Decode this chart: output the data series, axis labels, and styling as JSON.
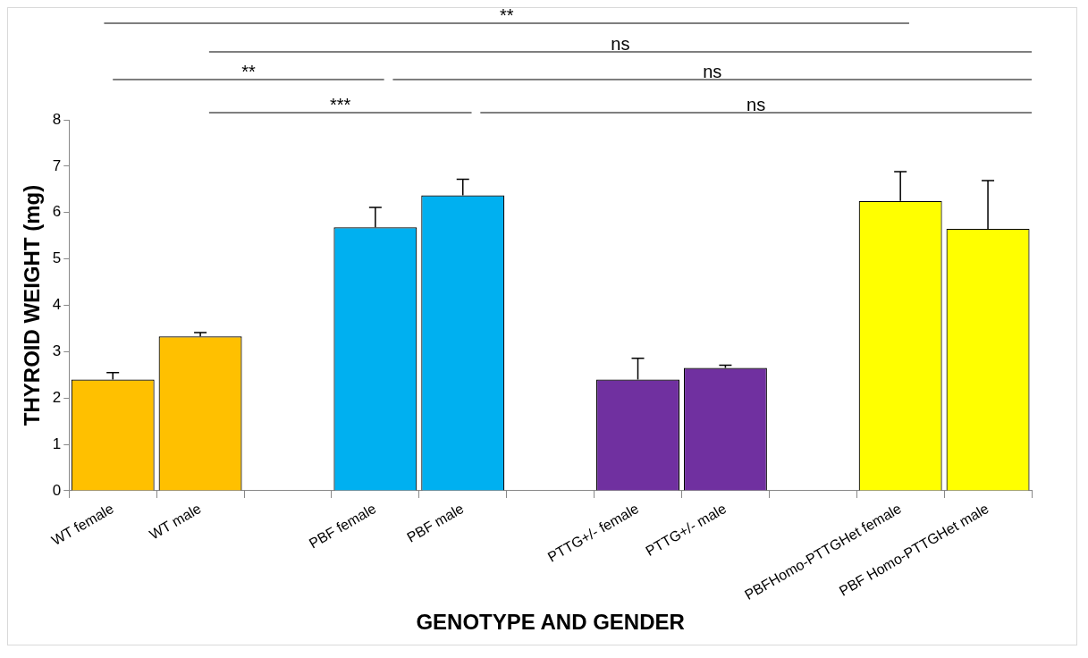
{
  "chart_data": {
    "type": "bar",
    "xlabel": "GENOTYPE AND GENDER",
    "ylabel": "THYROID WEIGHT (mg)",
    "categories": [
      "WT female",
      "WT male",
      null,
      "PBF female",
      "PBF male",
      null,
      "PTTG+/- female",
      "PTTG+/- male",
      null,
      "PBFHomo-PTTGHet female",
      "PBF Homo-PTTGHet male"
    ],
    "values": [
      2.4,
      3.33,
      null,
      5.68,
      6.37,
      null,
      2.4,
      2.65,
      null,
      6.25,
      5.65
    ],
    "colors": [
      "#ffc000",
      "#ffc000",
      null,
      "#00b0f0",
      "#00b0f0",
      null,
      "#7030a0",
      "#7030a0",
      null,
      "#ffff00",
      "#ffff00"
    ],
    "errors": [
      [
        2.4,
        2.55
      ],
      [
        3.33,
        3.41
      ],
      null,
      [
        5.68,
        6.11
      ],
      [
        6.37,
        6.72
      ],
      null,
      [
        2.4,
        2.86
      ],
      [
        2.65,
        2.71
      ],
      null,
      [
        6.25,
        6.88
      ],
      [
        5.65,
        6.69
      ]
    ],
    "ylim": [
      0,
      8
    ],
    "yticks": [
      0,
      1,
      2,
      3,
      4,
      5,
      6,
      7,
      8
    ],
    "grid": false,
    "legend": false,
    "annotations": [
      "**",
      "ns",
      "**",
      "ns",
      "***",
      "ns"
    ]
  }
}
